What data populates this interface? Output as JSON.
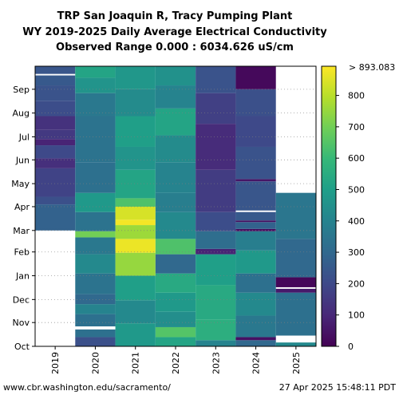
{
  "chart_data": {
    "type": "heatmap",
    "title": [
      "TRP San Joaquin R, Tracy Pumping Plant",
      "WY 2019-2025 Daily Average Electrical Conductivity",
      "Observed Range 0.000 : 6034.626 uS/cm"
    ],
    "xlabel": "",
    "ylabel": "",
    "x_categories": [
      "2019",
      "2020",
      "2021",
      "2022",
      "2023",
      "2024",
      "2025"
    ],
    "y_month_ticks": [
      "Oct",
      "Nov",
      "Dec",
      "Jan",
      "Feb",
      "Mar",
      "Apr",
      "May",
      "Jun",
      "Jul",
      "Aug",
      "Sep"
    ],
    "value_range": [
      0,
      893.083
    ],
    "colormap": "viridis",
    "colorbar": {
      "ticks": [
        0,
        100,
        200,
        300,
        400,
        500,
        600,
        700,
        800
      ],
      "tick_labels": [
        "0",
        "100",
        "200",
        "300",
        "400",
        "500",
        "600",
        "700",
        "800"
      ],
      "top_label": "> 893.083"
    },
    "units": "uS/cm",
    "grid": "horizontal dotted at month ticks",
    "columns": [
      {
        "water_year": "2019",
        "segments": [
          {
            "from_day": 0,
            "to_day": 151,
            "value": null
          },
          {
            "from_day": 151,
            "to_day": 185,
            "value": 280
          },
          {
            "from_day": 185,
            "to_day": 195,
            "value": 220
          },
          {
            "from_day": 195,
            "to_day": 232,
            "value": 180
          },
          {
            "from_day": 232,
            "to_day": 245,
            "value": 120
          },
          {
            "from_day": 245,
            "to_day": 262,
            "value": 200
          },
          {
            "from_day": 262,
            "to_day": 270,
            "value": 90
          },
          {
            "from_day": 270,
            "to_day": 282,
            "value": 150
          },
          {
            "from_day": 282,
            "to_day": 300,
            "value": 130
          },
          {
            "from_day": 300,
            "to_day": 320,
            "value": 210
          },
          {
            "from_day": 320,
            "to_day": 340,
            "value": 230
          },
          {
            "from_day": 340,
            "to_day": 353,
            "value": 250
          },
          {
            "from_day": 353,
            "to_day": 355,
            "value": null
          },
          {
            "from_day": 355,
            "to_day": 365,
            "value": 240
          }
        ]
      },
      {
        "water_year": "2020",
        "segments": [
          {
            "from_day": 0,
            "to_day": 12,
            "value": 220
          },
          {
            "from_day": 12,
            "to_day": 22,
            "value": 330
          },
          {
            "from_day": 22,
            "to_day": 26,
            "value": null
          },
          {
            "from_day": 26,
            "to_day": 42,
            "value": 330
          },
          {
            "from_day": 42,
            "to_day": 55,
            "value": 400
          },
          {
            "from_day": 55,
            "to_day": 68,
            "value": 300
          },
          {
            "from_day": 68,
            "to_day": 95,
            "value": 340
          },
          {
            "from_day": 95,
            "to_day": 120,
            "value": 420
          },
          {
            "from_day": 120,
            "to_day": 142,
            "value": 360
          },
          {
            "from_day": 142,
            "to_day": 150,
            "value": 700
          },
          {
            "from_day": 150,
            "to_day": 175,
            "value": 340
          },
          {
            "from_day": 175,
            "to_day": 200,
            "value": 480
          },
          {
            "from_day": 200,
            "to_day": 240,
            "value": 330
          },
          {
            "from_day": 240,
            "to_day": 300,
            "value": 340
          },
          {
            "from_day": 300,
            "to_day": 330,
            "value": 360
          },
          {
            "from_day": 330,
            "to_day": 350,
            "value": 460
          },
          {
            "from_day": 350,
            "to_day": 365,
            "value": 520
          }
        ]
      },
      {
        "water_year": "2021",
        "segments": [
          {
            "from_day": 0,
            "to_day": 30,
            "value": 480
          },
          {
            "from_day": 30,
            "to_day": 60,
            "value": 420
          },
          {
            "from_day": 60,
            "to_day": 92,
            "value": 500
          },
          {
            "from_day": 92,
            "to_day": 122,
            "value": 750
          },
          {
            "from_day": 122,
            "to_day": 140,
            "value": 870
          },
          {
            "from_day": 140,
            "to_day": 158,
            "value": 760
          },
          {
            "from_day": 158,
            "to_day": 165,
            "value": 880
          },
          {
            "from_day": 165,
            "to_day": 182,
            "value": 840
          },
          {
            "from_day": 182,
            "to_day": 193,
            "value": 640
          },
          {
            "from_day": 193,
            "to_day": 230,
            "value": 520
          },
          {
            "from_day": 230,
            "to_day": 260,
            "value": 460
          },
          {
            "from_day": 260,
            "to_day": 300,
            "value": 500
          },
          {
            "from_day": 300,
            "to_day": 335,
            "value": 430
          },
          {
            "from_day": 335,
            "to_day": 365,
            "value": 470
          }
        ]
      },
      {
        "water_year": "2022",
        "segments": [
          {
            "from_day": 0,
            "to_day": 12,
            "value": 520
          },
          {
            "from_day": 12,
            "to_day": 25,
            "value": 650
          },
          {
            "from_day": 25,
            "to_day": 45,
            "value": 440
          },
          {
            "from_day": 45,
            "to_day": 70,
            "value": 480
          },
          {
            "from_day": 70,
            "to_day": 95,
            "value": 540
          },
          {
            "from_day": 95,
            "to_day": 120,
            "value": 300
          },
          {
            "from_day": 120,
            "to_day": 140,
            "value": 640
          },
          {
            "from_day": 140,
            "to_day": 175,
            "value": 420
          },
          {
            "from_day": 175,
            "to_day": 200,
            "value": 380
          },
          {
            "from_day": 200,
            "to_day": 240,
            "value": 400
          },
          {
            "from_day": 240,
            "to_day": 275,
            "value": 430
          },
          {
            "from_day": 275,
            "to_day": 310,
            "value": 520
          },
          {
            "from_day": 310,
            "to_day": 340,
            "value": 400
          },
          {
            "from_day": 340,
            "to_day": 365,
            "value": 450
          }
        ]
      },
      {
        "water_year": "2023",
        "segments": [
          {
            "from_day": 0,
            "to_day": 8,
            "value": 400
          },
          {
            "from_day": 8,
            "to_day": 35,
            "value": 560
          },
          {
            "from_day": 35,
            "to_day": 80,
            "value": 540
          },
          {
            "from_day": 80,
            "to_day": 120,
            "value": 500
          },
          {
            "from_day": 120,
            "to_day": 127,
            "value": 90
          },
          {
            "from_day": 127,
            "to_day": 150,
            "value": 320
          },
          {
            "from_day": 150,
            "to_day": 175,
            "value": 210
          },
          {
            "from_day": 175,
            "to_day": 230,
            "value": 160
          },
          {
            "from_day": 230,
            "to_day": 290,
            "value": 110
          },
          {
            "from_day": 290,
            "to_day": 330,
            "value": 170
          },
          {
            "from_day": 330,
            "to_day": 365,
            "value": 230
          }
        ]
      },
      {
        "water_year": "2024",
        "segments": [
          {
            "from_day": 0,
            "to_day": 8,
            "value": 300
          },
          {
            "from_day": 8,
            "to_day": 12,
            "value": 40
          },
          {
            "from_day": 12,
            "to_day": 40,
            "value": 360
          },
          {
            "from_day": 40,
            "to_day": 70,
            "value": 420
          },
          {
            "from_day": 70,
            "to_day": 95,
            "value": 330
          },
          {
            "from_day": 95,
            "to_day": 125,
            "value": 480
          },
          {
            "from_day": 125,
            "to_day": 150,
            "value": 380
          },
          {
            "from_day": 150,
            "to_day": 153,
            "value": 30
          },
          {
            "from_day": 153,
            "to_day": 162,
            "value": 280
          },
          {
            "from_day": 162,
            "to_day": 164,
            "value": 30
          },
          {
            "from_day": 164,
            "to_day": 175,
            "value": 250
          },
          {
            "from_day": 175,
            "to_day": 177,
            "value": null
          },
          {
            "from_day": 177,
            "to_day": 215,
            "value": 240
          },
          {
            "from_day": 215,
            "to_day": 218,
            "value": 50
          },
          {
            "from_day": 218,
            "to_day": 260,
            "value": 230
          },
          {
            "from_day": 260,
            "to_day": 300,
            "value": 200
          },
          {
            "from_day": 300,
            "to_day": 335,
            "value": 220
          },
          {
            "from_day": 335,
            "to_day": 365,
            "value": 20
          }
        ]
      },
      {
        "water_year": "2025",
        "segments": [
          {
            "from_day": 0,
            "to_day": 5,
            "value": 420
          },
          {
            "from_day": 5,
            "to_day": 14,
            "value": null
          },
          {
            "from_day": 14,
            "to_day": 70,
            "value": 330
          },
          {
            "from_day": 70,
            "to_day": 75,
            "value": 60
          },
          {
            "from_day": 75,
            "to_day": 77,
            "value": null
          },
          {
            "from_day": 77,
            "to_day": 90,
            "value": 15
          },
          {
            "from_day": 90,
            "to_day": 140,
            "value": 300
          },
          {
            "from_day": 140,
            "to_day": 200,
            "value": 350
          },
          {
            "from_day": 200,
            "to_day": 365,
            "value": null
          }
        ]
      }
    ]
  },
  "footer": {
    "source_url": "www.cbr.washington.edu/sacramento/",
    "generated": "27 Apr 2025 15:48:11 PDT"
  }
}
